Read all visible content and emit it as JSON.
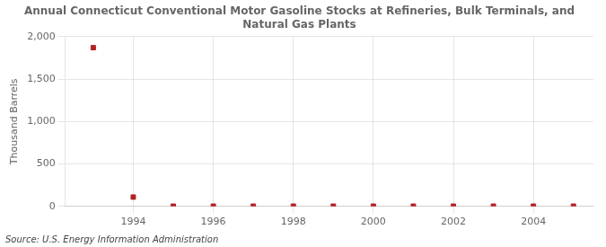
{
  "chart_data": {
    "type": "scatter",
    "title": "Annual Connecticut Conventional Motor Gasoline Stocks at Refineries, Bulk Terminals, and\nNatural Gas Plants",
    "ylabel": "Thousand Barrels",
    "source": "Source: U.S. Energy Information Administration",
    "x": [
      1993,
      1994,
      1995,
      1996,
      1997,
      1998,
      1999,
      2000,
      2001,
      2002,
      2003,
      2004,
      2005
    ],
    "values": [
      1870,
      110,
      3,
      3,
      3,
      3,
      3,
      3,
      3,
      3,
      3,
      3,
      3
    ],
    "color": "#b22222",
    "marker": "square",
    "xlim": [
      1992.3,
      2005.5
    ],
    "xticks": [
      1994,
      1996,
      1998,
      2000,
      2002,
      2004
    ],
    "ylim": [
      0,
      2000
    ],
    "yticks": [
      0,
      500,
      {
        "value": 1000,
        "label": "1,000"
      },
      {
        "value": 1500,
        "label": "1,500"
      },
      {
        "value": 2000,
        "label": "2,000"
      }
    ],
    "grid": true
  }
}
